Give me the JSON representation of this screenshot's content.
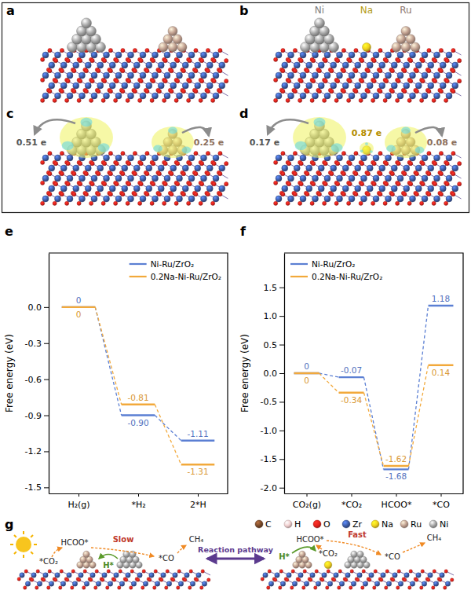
{
  "chart_data": [
    {
      "type": "line",
      "panel_label": "e",
      "y_label": "Free energy (eV)",
      "categories": [
        "H₂(g)",
        "*H₂",
        "2*H"
      ],
      "series": [
        {
          "name": "Ni-Ru/ZrO₂",
          "color": "#5b7fd3",
          "values": [
            0,
            -0.9,
            -1.11
          ],
          "value_labels": [
            "0",
            "-0.90",
            "-1.11"
          ]
        },
        {
          "name": "0.2Na-Ni-Ru/ZrO₂",
          "color": "#f2a93b",
          "values": [
            0,
            -0.81,
            -1.31
          ],
          "value_labels": [
            "0",
            "-0.81",
            "-1.31"
          ]
        }
      ],
      "ylim": [
        -1.55,
        0.45
      ],
      "yticks": [
        -1.5,
        -1.2,
        -0.9,
        -0.6,
        -0.3,
        {
          "value": 0,
          "label": "0.0"
        }
      ],
      "grid": false,
      "legend": "upper right",
      "data_labels": true
    },
    {
      "type": "line",
      "panel_label": "f",
      "y_label": "Free energy (eV)",
      "categories": [
        "CO₂(g)",
        "*CO₂",
        "HCOO*",
        "*CO"
      ],
      "series": [
        {
          "name": "Ni-Ru/ZrO₂",
          "color": "#5b7fd3",
          "values": [
            0,
            -0.07,
            -1.68,
            1.18
          ],
          "value_labels": [
            "0",
            "-0.07",
            "-1.68",
            "1.18"
          ]
        },
        {
          "name": "0.2Na-Ni-Ru/ZrO₂",
          "color": "#f2a93b",
          "values": [
            0,
            -0.34,
            -1.62,
            0.14
          ],
          "value_labels": [
            "0",
            "-0.34",
            "-1.62",
            "0.14"
          ]
        }
      ],
      "ylim": [
        -2.1,
        2.1
      ],
      "yticks": [
        {
          "value": -2,
          "label": "-2.0"
        },
        -1.5,
        {
          "value": -1,
          "label": "-1.0"
        },
        -0.5,
        {
          "value": 0,
          "label": "0.0"
        },
        0.5,
        {
          "value": 1,
          "label": "1.0"
        },
        1.5
      ],
      "grid": false,
      "legend": "upper left",
      "data_labels": true
    }
  ],
  "structures": {
    "panels": [
      {
        "panel_label": "a"
      },
      {
        "panel_label": "b",
        "atom_labels": [
          "Ni",
          "Na",
          "Ru"
        ]
      },
      {
        "panel_label": "c",
        "charges": [
          "0.51 e",
          "0.25 e"
        ]
      },
      {
        "panel_label": "d",
        "charges": [
          "0.17 e",
          "0.87 e",
          "0.08 e"
        ]
      }
    ]
  },
  "scheme": {
    "panel_label": "g",
    "elements": [
      {
        "symbol": "C",
        "color": "#7a4a2a"
      },
      {
        "symbol": "H",
        "color": "#f1cfcf"
      },
      {
        "symbol": "O",
        "color": "#e3221c"
      },
      {
        "symbol": "Zr",
        "color": "#3e5da8"
      },
      {
        "symbol": "Na",
        "color": "#f0d01e"
      },
      {
        "symbol": "Ru",
        "color": "#c1a090"
      },
      {
        "symbol": "Ni",
        "color": "#a7a7a7"
      }
    ],
    "pathways": [
      {
        "species": [
          "*CO₂",
          "HCOO*",
          "*CO",
          "CH₄"
        ],
        "rate": "Slow",
        "hydrogen": "H*"
      },
      {
        "species": [
          "*CO₂",
          "HCOO*",
          "*CO",
          "CH₄"
        ],
        "rate": "Fast",
        "hydrogen": "H*"
      }
    ],
    "arrow_label": "Reaction pathway"
  }
}
